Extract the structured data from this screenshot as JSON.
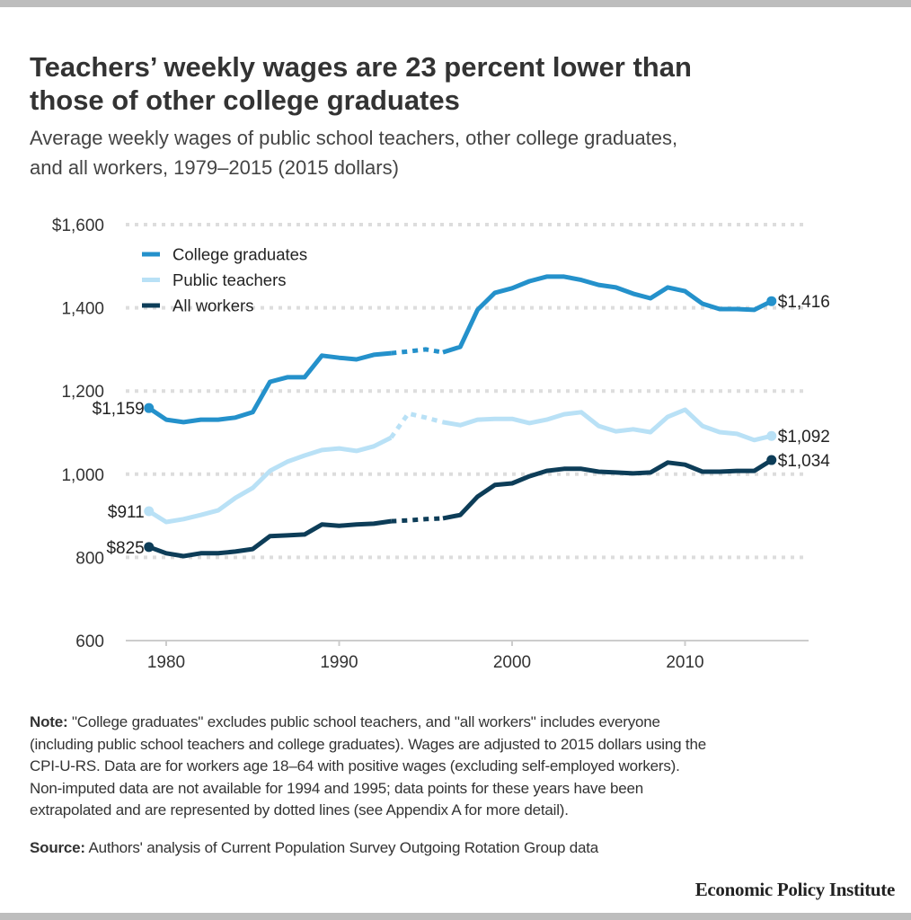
{
  "title_lines": [
    "Teachers’ weekly wages are 23 percent lower than",
    "those of other college graduates"
  ],
  "subtitle_lines": [
    "Average weekly wages of public school teachers, other college graduates,",
    "and all workers, 1979–2015 (2015 dollars)"
  ],
  "chart_data": {
    "type": "line",
    "title": "Teachers’ weekly wages are 23 percent lower than those of other college graduates",
    "subtitle": "Average weekly wages of public school teachers, other college graduates, and all workers, 1979–2015 (2015 dollars)",
    "x": [
      1979,
      1980,
      1981,
      1982,
      1983,
      1984,
      1985,
      1986,
      1987,
      1988,
      1989,
      1990,
      1991,
      1992,
      1993,
      1994,
      1995,
      1996,
      1997,
      1998,
      1999,
      2000,
      2001,
      2002,
      2003,
      2004,
      2005,
      2006,
      2007,
      2008,
      2009,
      2010,
      2011,
      2012,
      2013,
      2014,
      2015
    ],
    "xlim": [
      1977.5,
      2016.5
    ],
    "ylim": [
      600,
      1600
    ],
    "x_ticks": [
      1980,
      1990,
      2000,
      2010
    ],
    "x_tick_labels": [
      "1980",
      "1990",
      "2000",
      "2010"
    ],
    "y_ticks": [
      600,
      800,
      1000,
      1200,
      1400,
      1600
    ],
    "y_tick_labels": [
      "600",
      "800",
      "1,000",
      "1,200",
      "1,400",
      "$1,600"
    ],
    "grid": true,
    "legend_placement": "top-left",
    "dotted_range": [
      1993,
      1996
    ],
    "series": [
      {
        "name": "College graduates",
        "color": "#2491cb",
        "values": [
          1159,
          1131,
          1125,
          1131,
          1131,
          1136,
          1149,
          1222,
          1233,
          1233,
          1285,
          1280,
          1276,
          1287,
          1291,
          1295,
          1300,
          1293,
          1306,
          1395,
          1436,
          1447,
          1464,
          1475,
          1475,
          1467,
          1455,
          1449,
          1434,
          1423,
          1449,
          1440,
          1410,
          1397,
          1397,
          1395,
          1416
        ],
        "start_label": "$1,159",
        "end_label": "$1,416"
      },
      {
        "name": "Public teachers",
        "color": "#b9e1f6",
        "values": [
          911,
          885,
          892,
          902,
          913,
          943,
          967,
          1008,
          1030,
          1045,
          1058,
          1062,
          1056,
          1067,
          1088,
          1146,
          1136,
          1125,
          1118,
          1131,
          1133,
          1133,
          1123,
          1131,
          1144,
          1149,
          1116,
          1103,
          1108,
          1101,
          1138,
          1155,
          1116,
          1101,
          1097,
          1082,
          1092
        ],
        "start_label": "$911",
        "end_label": "$1,092"
      },
      {
        "name": "All workers",
        "color": "#0d3d58",
        "values": [
          825,
          810,
          803,
          810,
          810,
          814,
          820,
          851,
          853,
          855,
          879,
          876,
          879,
          881,
          887,
          889,
          892,
          894,
          902,
          946,
          974,
          978,
          995,
          1008,
          1013,
          1013,
          1006,
          1004,
          1002,
          1004,
          1028,
          1023,
          1006,
          1006,
          1008,
          1008,
          1034
        ],
        "start_label": "$825",
        "end_label": "$1,034"
      }
    ]
  },
  "notes": {
    "label": "Note:",
    "lines": [
      " \"College graduates\" excludes public school teachers, and \"all workers\" includes everyone",
      "(including public school teachers and college graduates). Wages are adjusted to 2015 dollars using the",
      "CPI-U-RS. Data are for workers age 18–64 with positive wages (excluding self-employed workers).",
      "Non-imputed data are not available for 1994 and 1995; data points for these years have been",
      "extrapolated and are represented by dotted lines (see Appendix A for more detail)."
    ]
  },
  "source": {
    "label": "Source:",
    "text": " Authors' analysis of Current Population Survey Outgoing Rotation Group data"
  },
  "logo": "Economic Policy Institute",
  "colors": {
    "grid": "#dddddd",
    "axis": "#cccccc",
    "frame_bar": "#bdbdbd"
  }
}
